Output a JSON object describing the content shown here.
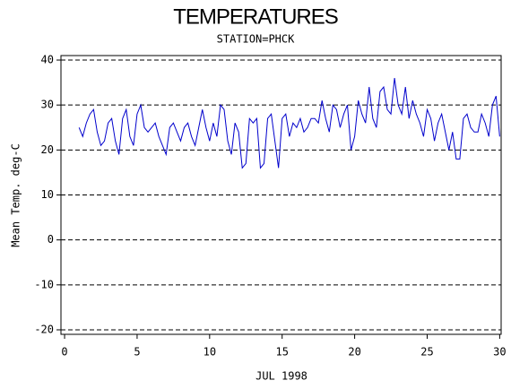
{
  "chart_data": {
    "type": "line",
    "title": "TEMPERATURES",
    "subtitle": "STATION=PHCK",
    "x_label": "JUL 1998",
    "y_label": "Mean Temp. deg-C",
    "xlim": [
      -0.25,
      30.1
    ],
    "xticks": [
      0,
      5,
      10,
      15,
      20,
      25,
      30
    ],
    "ylim": [
      -21,
      41
    ],
    "yticks": [
      -20,
      -10,
      0,
      10,
      20,
      30,
      40
    ],
    "grid": true,
    "series": [
      {
        "color": "#0000cc",
        "x": [
          1,
          1.25,
          1.5,
          1.75,
          2,
          2.25,
          2.5,
          2.75,
          3,
          3.25,
          3.5,
          3.75,
          4,
          4.25,
          4.5,
          4.75,
          5,
          5.25,
          5.5,
          5.75,
          6,
          6.25,
          6.5,
          6.75,
          7,
          7.25,
          7.5,
          7.75,
          8,
          8.25,
          8.5,
          8.75,
          9,
          9.25,
          9.5,
          9.75,
          10,
          10.25,
          10.5,
          10.75,
          11,
          11.25,
          11.5,
          11.75,
          12,
          12.25,
          12.5,
          12.75,
          13,
          13.25,
          13.5,
          13.75,
          14,
          14.25,
          14.5,
          14.75,
          15,
          15.25,
          15.5,
          15.75,
          16,
          16.25,
          16.5,
          16.75,
          17,
          17.25,
          17.5,
          17.75,
          18,
          18.25,
          18.5,
          18.75,
          19,
          19.25,
          19.5,
          19.75,
          20,
          20.25,
          20.5,
          20.75,
          21,
          21.25,
          21.5,
          21.75,
          22,
          22.25,
          22.5,
          22.75,
          23,
          23.25,
          23.5,
          23.75,
          24,
          24.25,
          24.5,
          24.75,
          25,
          25.25,
          25.5,
          25.75,
          26,
          26.25,
          26.5,
          26.75,
          27,
          27.25,
          27.5,
          27.75,
          28,
          28.25,
          28.5,
          28.75,
          29,
          29.25,
          29.5,
          29.75,
          30
        ],
        "values": [
          25,
          23,
          26,
          28,
          29,
          24,
          21,
          22,
          26,
          27,
          22,
          19,
          27,
          29,
          23,
          21,
          28,
          30,
          25,
          24,
          25,
          26,
          23,
          21,
          19,
          25,
          26,
          24,
          22,
          25,
          26,
          23,
          21,
          25,
          29,
          25,
          22,
          26,
          23,
          30,
          29,
          22,
          19,
          26,
          24,
          16,
          17,
          27,
          26,
          27,
          16,
          17,
          27,
          28,
          22,
          16,
          27,
          28,
          23,
          26,
          25,
          27,
          24,
          25,
          27,
          27,
          26,
          31,
          27,
          24,
          30,
          29,
          25,
          28,
          30,
          20,
          23,
          31,
          28,
          26,
          34,
          27,
          25,
          33,
          34,
          29,
          28,
          36,
          30,
          28,
          34,
          27,
          31,
          28,
          26,
          23,
          29,
          27,
          22,
          26,
          28,
          24,
          20,
          24,
          18,
          18,
          27,
          28,
          25,
          24,
          24,
          28,
          26,
          23,
          30,
          32,
          23
        ]
      }
    ]
  }
}
